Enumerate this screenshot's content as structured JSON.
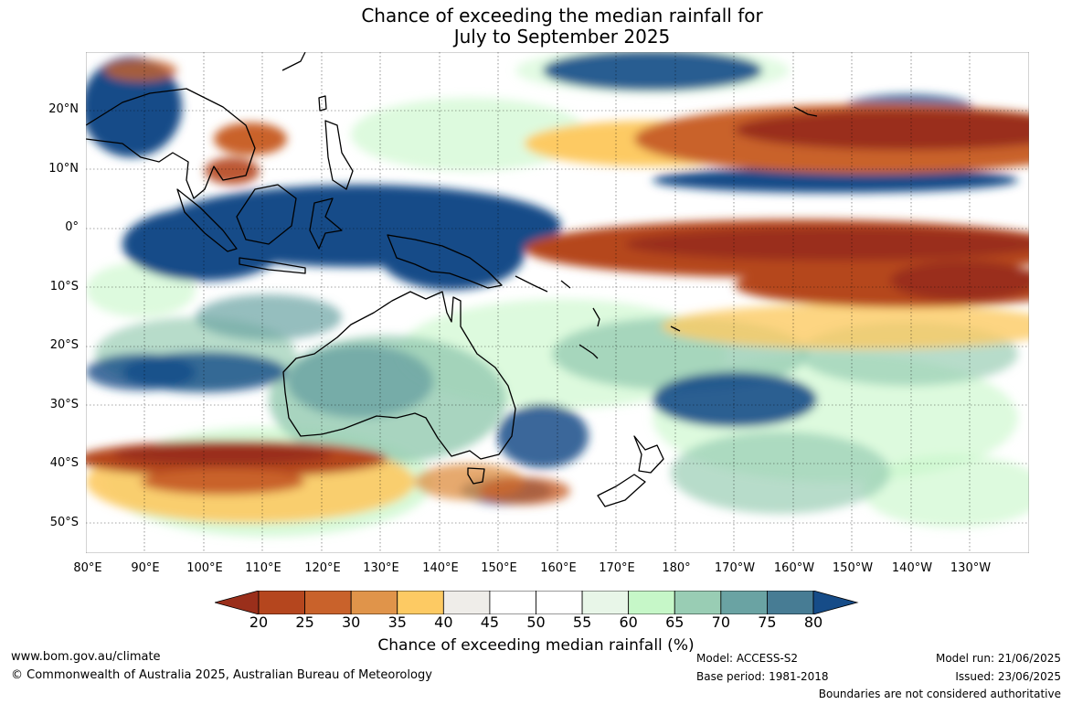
{
  "title": {
    "line1": "Chance of exceeding the median rainfall for",
    "line2": "July to September 2025"
  },
  "map": {
    "lat_labels": [
      "20°N",
      "10°N",
      "0°",
      "10°S",
      "20°S",
      "30°S",
      "40°S",
      "50°S"
    ],
    "lon_labels": [
      "80°E",
      "90°E",
      "100°E",
      "110°E",
      "120°E",
      "130°E",
      "140°E",
      "150°E",
      "160°E",
      "170°E",
      "180°",
      "170°W",
      "160°W",
      "150°W",
      "140°W",
      "130°W"
    ]
  },
  "colorbar": {
    "ticks": [
      "20",
      "25",
      "30",
      "35",
      "40",
      "45",
      "50",
      "55",
      "60",
      "65",
      "70",
      "75",
      "80"
    ],
    "colors": [
      "#9a2f1b",
      "#b5461e",
      "#c9622b",
      "#e0944a",
      "#fdca63",
      "#efede9",
      "#ffffff",
      "#ffffff",
      "#e8f6e8",
      "#c6f7c8",
      "#99cdb4",
      "#6aa3a3",
      "#477c94",
      "#164c88"
    ],
    "label": "Chance of exceeding median rainfall (%)"
  },
  "footer": {
    "website": "www.bom.gov.au/climate",
    "copyright": "© Commonwealth of Australia 2025, Australian Bureau of Meteorology",
    "model": "Model: ACCESS-S2",
    "base_period": "Base period: 1981-2018",
    "model_run": "Model run: 21/06/2025",
    "issued": "Issued: 23/06/2025",
    "disclaimer": "Boundaries are not considered authoritative"
  }
}
